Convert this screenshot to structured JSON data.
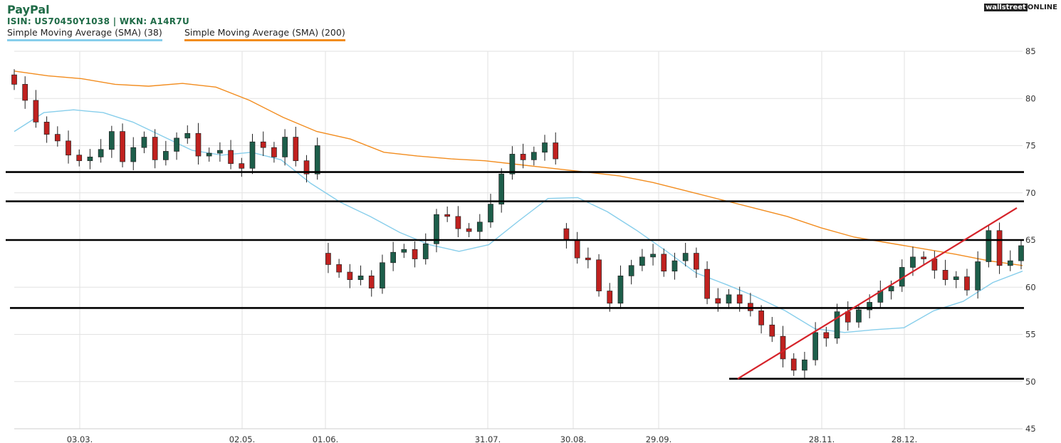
{
  "header": {
    "title": "PayPal",
    "subtitle": "ISIN: US70450Y1038  | WKN: A14R7U",
    "logo_dark": "wallstreet",
    "logo_light": "ONLINE"
  },
  "legend": [
    {
      "label": "Simple Moving Average (SMA) (38)",
      "color": "#87ceeb"
    },
    {
      "label": "Simple Moving Average (SMA) (200)",
      "color": "#f28c1e"
    }
  ],
  "colors": {
    "up": "#1d5e4a",
    "down": "#c0211f",
    "sma38": "#87ceeb",
    "sma200": "#f28c1e",
    "trend": "#d6232a",
    "level": "#000000"
  },
  "chart_data": {
    "type": "candlestick",
    "ylim": [
      45,
      85
    ],
    "yticks": [
      45,
      50,
      55,
      60,
      65,
      70,
      75,
      80,
      85
    ],
    "xticks": [
      "03.03.",
      "02.05.",
      "01.06.",
      "31.07.",
      "30.08.",
      "29.09.",
      "28.11.",
      "28.12."
    ],
    "grid": true,
    "horizontal_levels": [
      72.2,
      69.1,
      65.0,
      57.8,
      50.3
    ],
    "trend_line": {
      "start": {
        "date": "2023-10-19",
        "value": 50.3
      },
      "end": {
        "date": "2024-02-14",
        "value": 68.4
      }
    },
    "series": [
      {
        "name": "Simple Moving Average (SMA) (38)",
        "values": [
          76.5,
          78.5,
          78.8,
          78.5,
          77.5,
          76.0,
          74.5,
          74.0,
          74.3,
          73.5,
          71.0,
          69.0,
          67.5,
          65.8,
          64.5,
          63.8,
          64.5,
          67.0,
          69.4,
          69.5,
          68.0,
          66.0,
          63.8,
          61.5,
          60.3,
          59.0,
          57.5,
          55.6,
          55.2,
          55.5,
          55.7,
          57.5,
          58.5,
          60.5,
          61.7
        ]
      },
      {
        "name": "Simple Moving Average (SMA) (200)",
        "values": [
          82.9,
          82.4,
          82.1,
          81.5,
          81.3,
          81.6,
          81.2,
          79.8,
          78.0,
          76.5,
          75.7,
          74.3,
          73.9,
          73.6,
          73.4,
          73.0,
          72.6,
          72.2,
          71.8,
          71.1,
          70.2,
          69.3,
          68.4,
          67.5,
          66.3,
          65.3,
          64.7,
          64.1,
          63.5,
          62.8,
          62.3
        ]
      }
    ],
    "candles_close": [
      81.5,
      79.8,
      77.5,
      76.2,
      75.5,
      74.0,
      73.4,
      73.8,
      74.6,
      76.5,
      73.3,
      74.8,
      75.9,
      73.5,
      74.4,
      75.8,
      76.3,
      73.9,
      74.2,
      74.5,
      73.1,
      72.6,
      75.4,
      74.8,
      73.8,
      75.9,
      73.4,
      72.0,
      75.0,
      62.4,
      61.6,
      60.8,
      61.2,
      59.9,
      62.6,
      63.7,
      64.0,
      63.0,
      64.6,
      67.7,
      67.5,
      66.2,
      65.9,
      66.9,
      68.8,
      72.0,
      74.1,
      73.5,
      74.3,
      75.3,
      73.6,
      65.0,
      63.1,
      62.9,
      59.6,
      58.3,
      61.2,
      62.3,
      63.2,
      63.5,
      61.7,
      62.8,
      63.6,
      61.9,
      58.8,
      58.3,
      59.2,
      58.3,
      57.5,
      56.0,
      54.8,
      52.4,
      51.2,
      52.3,
      55.2,
      54.6,
      57.4,
      56.3,
      57.6,
      58.4,
      59.6,
      60.1,
      62.1,
      63.2,
      63.0,
      61.8,
      60.8,
      61.1,
      59.7,
      62.7,
      66.0,
      62.3,
      62.8,
      64.4
    ]
  }
}
